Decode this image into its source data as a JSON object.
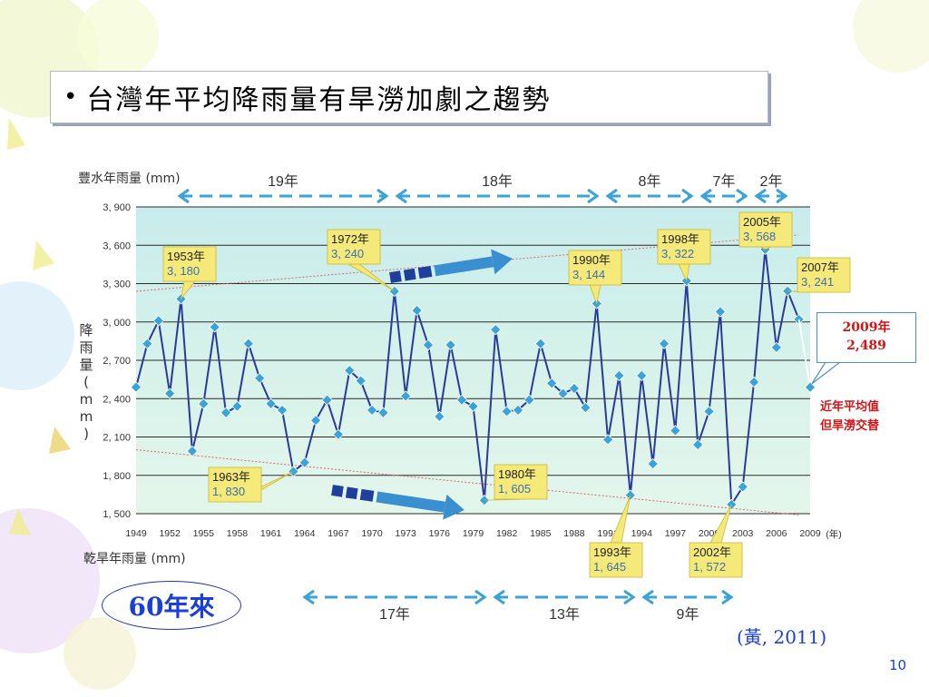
{
  "slide": {
    "title": "台灣年平均降雨量有旱澇加劇之趨勢",
    "bullet": "•",
    "badge": "60年來",
    "citation": "(黃, 2011)",
    "page_number": "10",
    "note_2009_line1": "2009年",
    "note_2009_line2": "2,489",
    "note_red_line1": "近年平均值",
    "note_red_line2": "但旱澇交替",
    "colors": {
      "accent_blue": "#1a3fd6",
      "alert_red": "#d41414",
      "series_line": "#2a3a9a",
      "marker": "#3aa3d8",
      "callout_fill": "#f5e97a"
    }
  },
  "chart_data": {
    "type": "line",
    "title": "",
    "top_label": "豐水年雨量 (mm)",
    "bottom_label": "乾旱年雨量 (mm)",
    "ylabel": "降雨量(mm)",
    "xlabel": "(年)",
    "ylim": [
      1500,
      3900
    ],
    "yticks": [
      "3, 900",
      "3, 600",
      "3, 300",
      "3, 000",
      "2, 700",
      "2, 400",
      "2, 100",
      "1, 800",
      "1, 500"
    ],
    "ytick_values": [
      3900,
      3600,
      3300,
      3000,
      2700,
      2400,
      2100,
      1800,
      1500
    ],
    "xticks": [
      "1949",
      "1952",
      "1955",
      "1958",
      "1961",
      "1964",
      "1967",
      "1970",
      "1973",
      "1976",
      "1979",
      "1982",
      "1985",
      "1988",
      "1991",
      "1994",
      "1997",
      "2000",
      "2003",
      "2006",
      "2009"
    ],
    "grid": true,
    "series": [
      {
        "x": [
          1949,
          1950,
          1951,
          1952,
          1953,
          1954,
          1955,
          1956,
          1957,
          1958,
          1959,
          1960,
          1961,
          1962,
          1963,
          1964,
          1965,
          1966,
          1967,
          1968,
          1969,
          1970,
          1971,
          1972,
          1973,
          1974,
          1975,
          1976,
          1977,
          1978,
          1979,
          1980,
          1981,
          1982,
          1983,
          1984,
          1985,
          1986,
          1987,
          1988,
          1989,
          1990,
          1991,
          1992,
          1993,
          1994,
          1995,
          1996,
          1997,
          1998,
          1999,
          2000,
          2001,
          2002,
          2003,
          2004,
          2005,
          2006,
          2007,
          2008
        ],
        "y": [
          2490,
          2830,
          3010,
          2440,
          3180,
          1990,
          2360,
          2960,
          2290,
          2340,
          2830,
          2560,
          2360,
          2310,
          1830,
          1900,
          2230,
          2390,
          2120,
          2620,
          2540,
          2310,
          2290,
          3240,
          2420,
          3090,
          2820,
          2260,
          2820,
          2390,
          2340,
          1605,
          2940,
          2300,
          2310,
          2390,
          2830,
          2520,
          2440,
          2480,
          2330,
          3144,
          2080,
          2580,
          1645,
          2580,
          1890,
          2830,
          2150,
          3322,
          2040,
          2300,
          3080,
          1572,
          1710,
          2530,
          3568,
          2800,
          3241,
          3020
        ]
      }
    ],
    "highlighted": [
      {
        "year": "1953年",
        "value": "3, 180"
      },
      {
        "year": "1972年",
        "value": "3, 240"
      },
      {
        "year": "1990年",
        "value": "3, 144"
      },
      {
        "year": "1998年",
        "value": "3, 322"
      },
      {
        "year": "2005年",
        "value": "3, 568"
      },
      {
        "year": "2007年",
        "value": "3, 241"
      },
      {
        "year": "1963年",
        "value": "1, 830"
      },
      {
        "year": "1980年",
        "value": "1, 605"
      },
      {
        "year": "1993年",
        "value": "1, 645"
      },
      {
        "year": "2002年",
        "value": "1, 572"
      }
    ],
    "periods_top": [
      "19年",
      "18年",
      "8年",
      "7年",
      "2年"
    ],
    "periods_bottom": [
      "17年",
      "13年",
      "9年"
    ],
    "point_2009": {
      "x": 2009,
      "y": 2489
    }
  }
}
